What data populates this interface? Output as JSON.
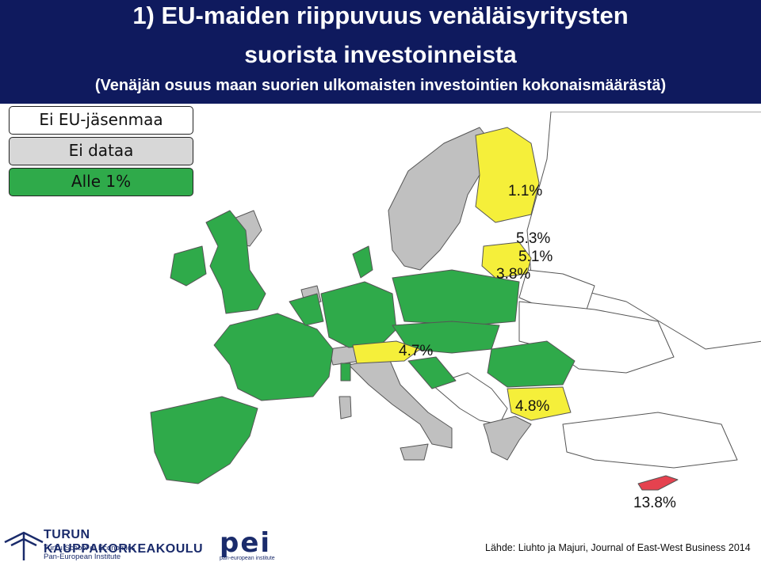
{
  "header": {
    "title_line1": "1) EU-maiden riippuvuus venäläisyritysten",
    "title_line2": "suorista investoinneista",
    "subtitle": "(Venäjän osuus maan suorien ulkomaisten investointien kokonaismäärästä)"
  },
  "colors": {
    "header_bg": "#0f1a5e",
    "non_eu": "#ffffff",
    "no_data": "#c0c0c0",
    "under_1": "#2faa4a",
    "yellow": "#f5ef3a",
    "red": "#e5424f"
  },
  "legend": [
    {
      "label": "Ei EU-jäsenmaa",
      "color": "#ffffff"
    },
    {
      "label": "Ei dataa",
      "color": "#d7d7d7"
    },
    {
      "label": "Alle 1%",
      "color": "#2faa4a"
    }
  ],
  "values": {
    "finland": "1.1%",
    "estonia": "5.3%",
    "latvia": "5.1%",
    "lithuania": "3.8%",
    "austria": "4.7%",
    "bulgaria": "4.8%",
    "cyprus": "13.8%"
  },
  "logos": {
    "tse_name": "TURUN KAUPPAKORKEAKOULU",
    "tse_sub1": "Turku School of Economics",
    "tse_sub2": "Pan-European Institute",
    "pei_short": "pei",
    "pei_full": "pan-european institute"
  },
  "source": "Lähde: Liuhto ja Majuri, Journal of East-West Business 2014"
}
